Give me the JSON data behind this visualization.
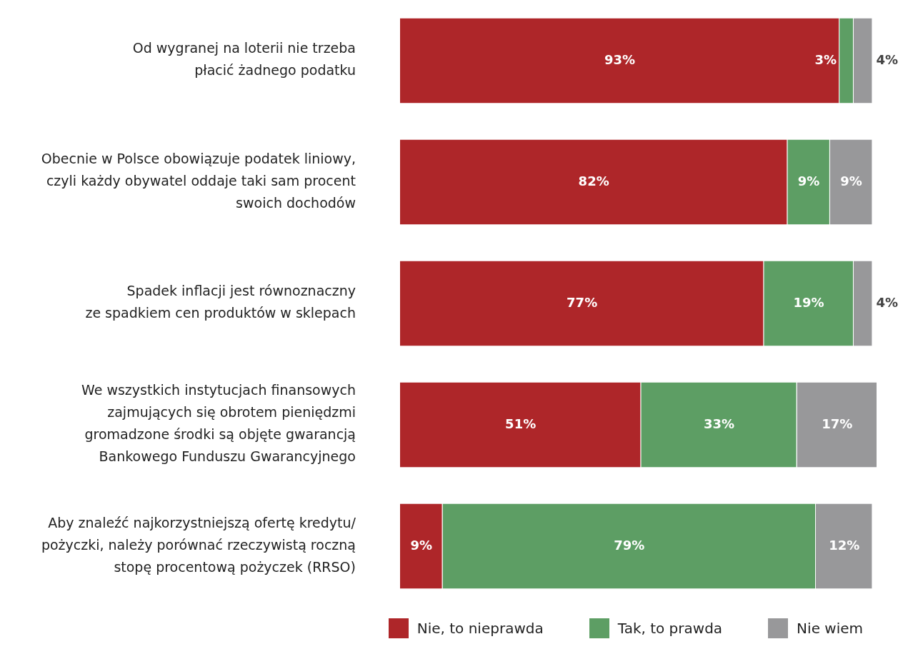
{
  "chart_data": {
    "type": "bar",
    "orientation": "horizontal",
    "stacked": true,
    "legend": "bottom",
    "tick_labels": "y",
    "categories": [
      "Od wygranej na loterii nie trzeba\npłacić żadnego podatku",
      "Obecnie w Polsce obowiązuje podatek liniowy,\nczyli każdy obywatel oddaje taki sam procent\nswoich dochodów",
      "Spadek inflacji jest równoznaczny\nze spadkiem cen produktów w sklepach",
      "We wszystkich instytucjach finansowych\nzajmujących się obrotem pieniędzmi\ngromadzone środki są objęte gwarancją\nBankowego Funduszu Gwarancyjnego",
      "Aby znaleźć najkorzystniejszą ofertę kredytu/\npożyczki, należy porównać rzeczywistą roczną\nstopę procentową pożyczek (RRSO)"
    ],
    "series": [
      {
        "name": "Nie, to nieprawda",
        "color": "#ae2629",
        "values": [
          93,
          82,
          77,
          51,
          9
        ],
        "value_labels": [
          "93%",
          "82%",
          "77%",
          "51%",
          "9%"
        ]
      },
      {
        "name": "Tak, to prawda",
        "color": "#5d9e64",
        "values": [
          3,
          9,
          19,
          33,
          79
        ],
        "value_labels": [
          "3%",
          "9%",
          "19%",
          "33%",
          "79%"
        ]
      },
      {
        "name": "Nie wiem",
        "color": "#98989a",
        "values": [
          4,
          9,
          4,
          17,
          12
        ],
        "value_labels": [
          "4%",
          "9%",
          "4%",
          "17%",
          "12%"
        ]
      }
    ]
  }
}
